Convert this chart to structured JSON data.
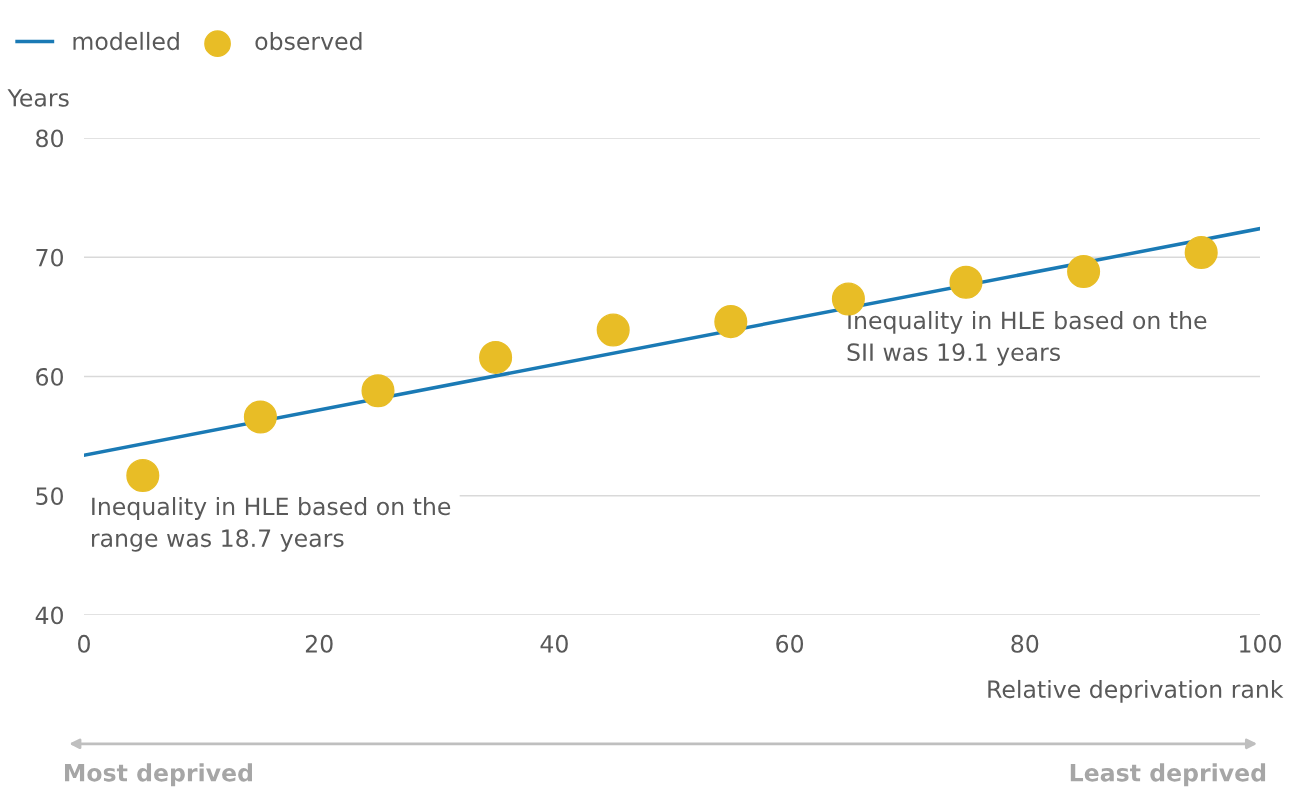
{
  "chart_data": {
    "type": "scatter",
    "ylabel": "Years",
    "xlabel": "Relative deprivation rank",
    "xlim": [
      0,
      100
    ],
    "xticks": [
      0,
      20,
      40,
      60,
      80,
      100
    ],
    "ylim": [
      40,
      80
    ],
    "yticks": [
      40,
      50,
      60,
      70,
      80
    ],
    "grid": "y",
    "legend": "top left",
    "series": [
      {
        "name": "modelled",
        "type": "line",
        "color": "#1a7ab5",
        "x": [
          0,
          100
        ],
        "values": [
          53.4,
          72.4
        ],
        "marker": "none",
        "line_style": "solid"
      },
      {
        "name": "observed",
        "color": "#e8bd26",
        "x": [
          5,
          15,
          25,
          35,
          45,
          55,
          65,
          75,
          85,
          95
        ],
        "values": [
          51.7,
          56.6,
          58.8,
          61.6,
          63.9,
          64.6,
          66.5,
          67.9,
          68.8,
          70.4
        ],
        "marker": "circle"
      }
    ],
    "annotations": [
      "Inequality in HLE based on the\nrange was 18.7 years",
      "Inequality in HLE based on the\nSII was 19.1 years",
      "Most deprived",
      "Least deprived"
    ]
  }
}
